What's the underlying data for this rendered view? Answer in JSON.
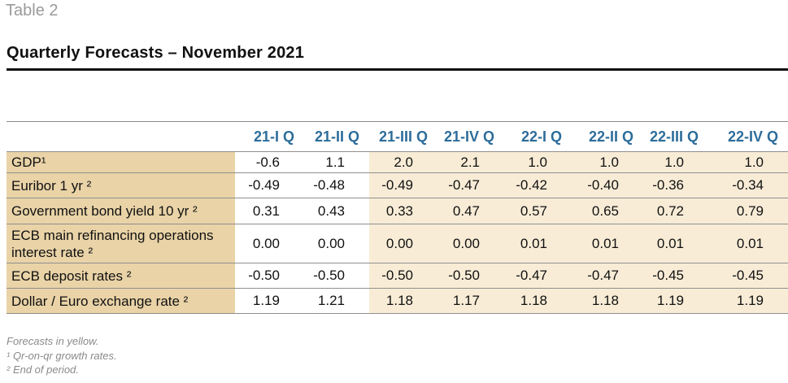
{
  "table_label": "Table 2",
  "title": "Quarterly Forecasts – November 2021",
  "columns": [
    "21-I Q",
    "21-II Q",
    "21-III Q",
    "21-IV Q",
    "22-I Q",
    "22-II Q",
    "22-III Q",
    "22-IV Q"
  ],
  "rows": [
    {
      "label": "GDP¹",
      "values": [
        "-0.6",
        "1.1",
        "2.0",
        "2.1",
        "1.0",
        "1.0",
        "1.0",
        "1.0"
      ]
    },
    {
      "label": "Euribor 1 yr ²",
      "values": [
        "-0.49",
        "-0.48",
        "-0.49",
        "-0.47",
        "-0.42",
        "-0.40",
        "-0.36",
        "-0.34"
      ]
    },
    {
      "label": "Government bond yield 10 yr ²",
      "values": [
        "0.31",
        "0.43",
        "0.33",
        "0.47",
        "0.57",
        "0.65",
        "0.72",
        "0.79"
      ]
    },
    {
      "label": "ECB main refinancing operations interest rate ²",
      "values": [
        "0.00",
        "0.00",
        "0.00",
        "0.00",
        "0.01",
        "0.01",
        "0.01",
        "0.01"
      ]
    },
    {
      "label": "ECB deposit rates ²",
      "values": [
        "-0.50",
        "-0.50",
        "-0.50",
        "-0.50",
        "-0.47",
        "-0.47",
        "-0.45",
        "-0.45"
      ]
    },
    {
      "label": "Dollar / Euro exchange rate ²",
      "values": [
        "1.19",
        "1.21",
        "1.18",
        "1.17",
        "1.18",
        "1.18",
        "1.19",
        "1.19"
      ]
    }
  ],
  "forecast_start_column": 2,
  "notes": [
    "Forecasts in yellow.",
    "¹ Qr-on-qr growth rates.",
    "² End of period."
  ],
  "colors": {
    "header_text": "#2d6d9a",
    "label_fill": "#e9d3a7",
    "forecast_fill": "#f8ecd6"
  }
}
